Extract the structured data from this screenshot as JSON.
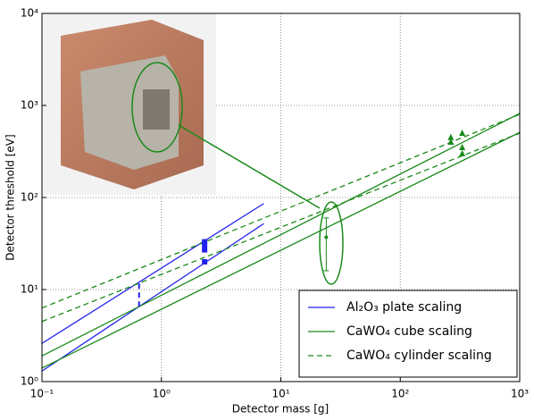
{
  "chart_data": {
    "type": "line",
    "xlabel": "Detector mass [g]",
    "ylabel": "Detector threshold [eV]",
    "xscale": "log",
    "yscale": "log",
    "grid": true,
    "xlim": [
      0.1,
      1000
    ],
    "ylim": [
      1,
      10000
    ],
    "xticks": [
      {
        "value": 0.1,
        "label": "10⁻¹"
      },
      {
        "value": 1,
        "label": "10⁰"
      },
      {
        "value": 10,
        "label": "10¹"
      },
      {
        "value": 100,
        "label": "10²"
      },
      {
        "value": 1000,
        "label": "10³"
      }
    ],
    "yticks": [
      {
        "value": 1,
        "label": "10⁰"
      },
      {
        "value": 10,
        "label": "10¹"
      },
      {
        "value": 100,
        "label": "10²"
      },
      {
        "value": 1000,
        "label": "10³"
      },
      {
        "value": 10000,
        "label": "10⁴"
      }
    ],
    "legend": "lower right",
    "series": [
      {
        "name": "Al₂O₃ plate scaling",
        "color": "#2222ee",
        "dash": false,
        "x": [
          0.1,
          7.2
        ],
        "values": [
          2.6,
          86
        ]
      },
      {
        "color": "#2222ee",
        "dash": false,
        "x": [
          0.1,
          7.2
        ],
        "values": [
          1.3,
          52
        ]
      },
      {
        "name": "CaWO₄ cube scaling",
        "color": "#1a8a1a",
        "dash": false,
        "x": [
          0.1,
          1000
        ],
        "values": [
          1.9,
          820
        ]
      },
      {
        "color": "#1a8a1a",
        "dash": false,
        "x": [
          0.1,
          1000
        ],
        "values": [
          1.4,
          510
        ]
      },
      {
        "name": "CaWO₄ cylinder scaling",
        "color": "#1a8a1a",
        "dash": true,
        "x": [
          0.1,
          1000
        ],
        "values": [
          6.3,
          800
        ]
      },
      {
        "color": "#1a8a1a",
        "dash": true,
        "x": [
          0.1,
          1000
        ],
        "values": [
          4.5,
          500
        ]
      }
    ],
    "points": [
      {
        "color": "#2222ee",
        "marker": "bar",
        "x": [
          0.65
        ],
        "values": [
          9
        ],
        "lower": [
          6.5
        ],
        "upper": [
          12.5
        ]
      },
      {
        "color": "#2222ee",
        "marker": "square",
        "x": [
          2.3,
          2.3,
          2.3,
          2.3
        ],
        "values": [
          20,
          27,
          30,
          33
        ]
      },
      {
        "color": "#1a8a1a",
        "marker": "star",
        "x": [
          24
        ],
        "values": [
          37
        ],
        "lower": [
          16
        ],
        "upper": [
          60
        ]
      },
      {
        "color": "#1a8a1a",
        "marker": "triangle",
        "x": [
          265,
          265,
          330,
          330,
          330
        ],
        "values": [
          400,
          450,
          300,
          350,
          500
        ]
      }
    ]
  }
}
